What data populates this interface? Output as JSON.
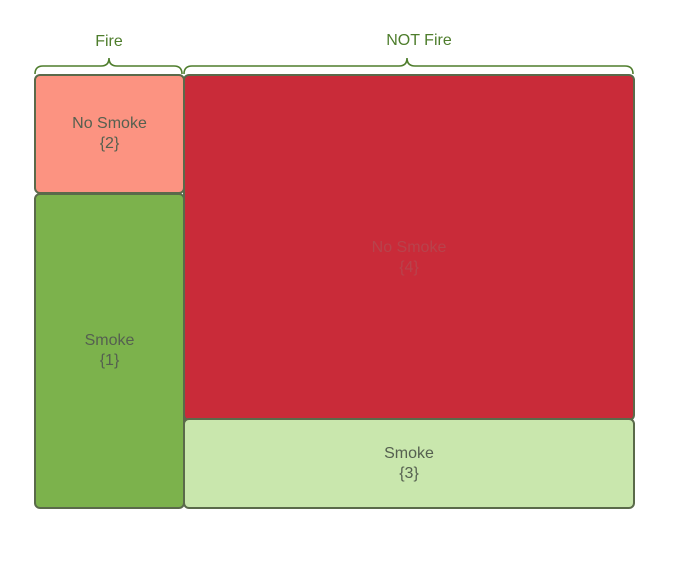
{
  "groups": {
    "fire_label": "Fire",
    "not_fire_label": "NOT Fire"
  },
  "cells": {
    "fire_no_smoke": {
      "label": "No Smoke",
      "count": "{2}",
      "color": "#fc9381"
    },
    "fire_smoke": {
      "label": "Smoke",
      "count": "{1}",
      "color": "#7cb24c"
    },
    "notfire_no_smoke": {
      "label": "No Smoke",
      "count": "{4}",
      "color": "#c92b39"
    },
    "notfire_smoke": {
      "label": "Smoke",
      "count": "{3}",
      "color": "#c9e7ad"
    }
  },
  "colors": {
    "brace": "#4e7d2c",
    "border": "#5a6a4a"
  }
}
